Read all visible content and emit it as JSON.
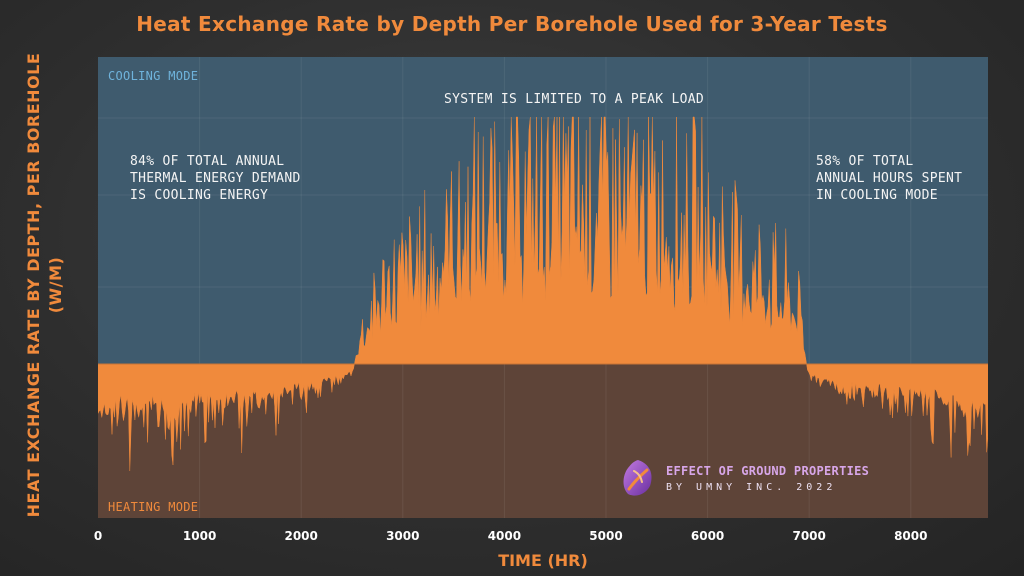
{
  "chart_data": {
    "type": "area",
    "title": "Heat Exchange Rate by Depth Per Borehole Used for 3-Year Tests",
    "xlabel": "TIME (HR)",
    "ylabel": "HEAT EXCHANGE RATE BY DEPTH, PER BOREHOLE (W/M)",
    "xlim": [
      0,
      8760
    ],
    "x_ticks": [
      "0",
      "1000",
      "2000",
      "3000",
      "4000",
      "5000",
      "6000",
      "7000",
      "8000"
    ],
    "grid": true,
    "regions": {
      "cooling_label": "COOLING MODE",
      "heating_label": "HEATING MODE"
    },
    "annotations": {
      "peak": "SYSTEM IS LIMITED TO A PEAK LOAD",
      "energy": [
        "84% OF TOTAL ANNUAL",
        "THERMAL ENERGY DEMAND",
        "IS COOLING ENERGY"
      ],
      "hours": [
        "58% OF TOTAL",
        "ANNUAL HOURS SPENT",
        "IN COOLING MODE"
      ]
    },
    "series": [
      {
        "color": "#f08a3c",
        "x": [
          0,
          250,
          500,
          750,
          1000,
          1250,
          1500,
          1750,
          2000,
          2250,
          2500,
          2600,
          2800,
          3000,
          3250,
          3500,
          3750,
          4000,
          4250,
          4500,
          4750,
          5000,
          5250,
          5500,
          5750,
          6000,
          6250,
          6500,
          6750,
          6900,
          7000,
          7250,
          7500,
          7750,
          8000,
          8250,
          8500,
          8760
        ],
        "y": [
          -0.7,
          -0.55,
          -0.6,
          -0.65,
          -0.5,
          -0.45,
          -0.5,
          -0.4,
          -0.3,
          -0.2,
          -0.05,
          0.2,
          0.4,
          0.5,
          0.55,
          0.7,
          0.8,
          0.85,
          0.9,
          0.95,
          0.95,
          0.95,
          0.9,
          0.85,
          0.8,
          0.75,
          0.6,
          0.5,
          0.4,
          0.3,
          -0.1,
          -0.25,
          -0.3,
          -0.35,
          -0.4,
          -0.45,
          -0.6,
          -0.75
        ]
      }
    ]
  },
  "branding": {
    "line1": "EFFECT OF GROUND PROPERTIES",
    "line2": "BY UMNY INC. 2022"
  },
  "colors": {
    "cooling_bg": "#3f5b6e",
    "heating_bg": "#5e4438",
    "area": "#f08a3c",
    "title": "#f08a3c",
    "cooling_label": "#6fb3dc",
    "heating_label": "#f08a3c"
  }
}
